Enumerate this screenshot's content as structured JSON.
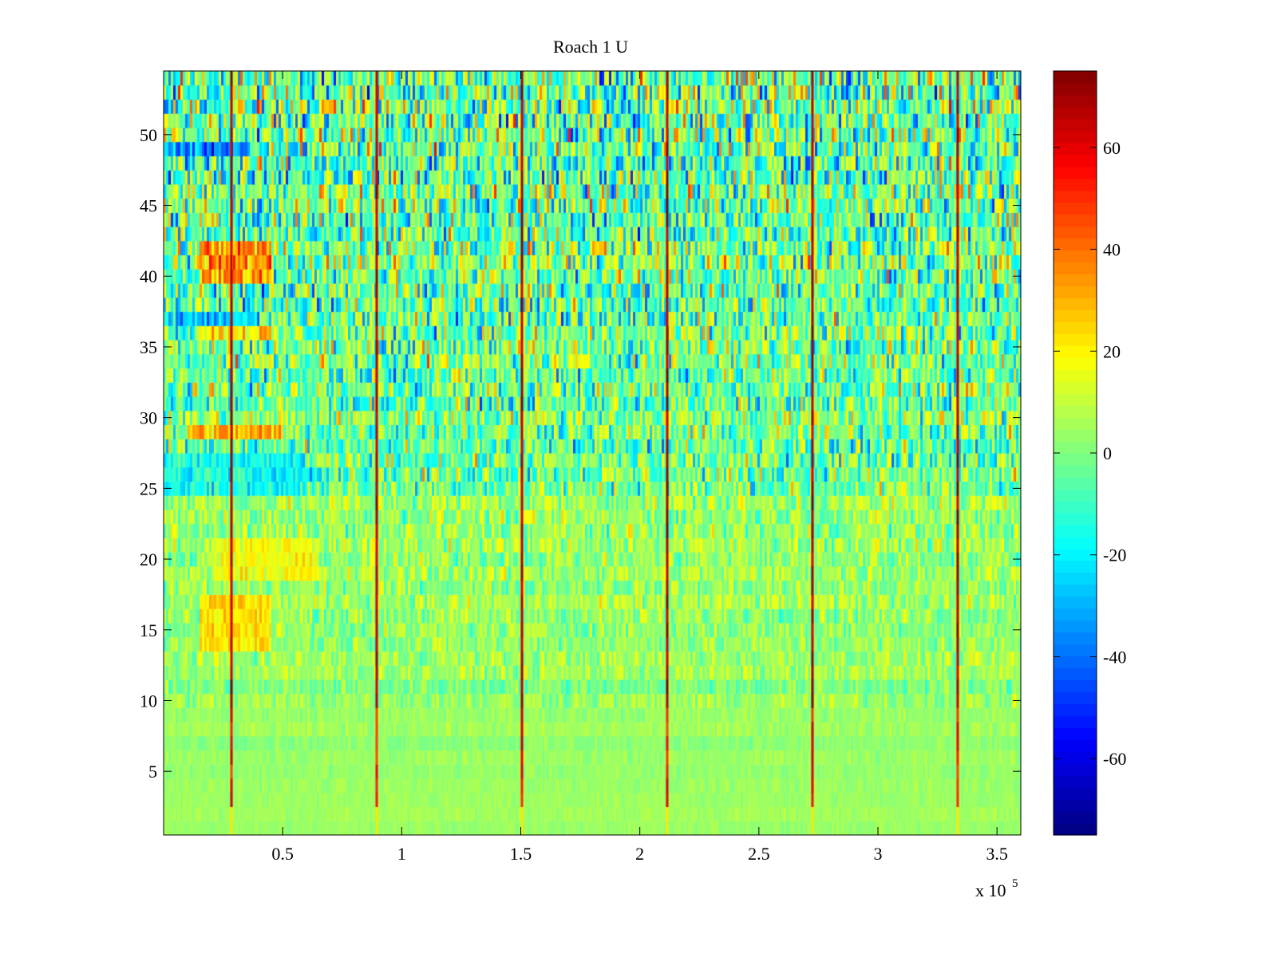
{
  "chart_data": {
    "type": "heatmap",
    "title": "Roach 1 U",
    "xlabel": "",
    "ylabel": "",
    "x_multiplier_label": "x 10",
    "x_multiplier_exponent": "5",
    "x_range": [
      0,
      3.6
    ],
    "x_ticks": [
      0.5,
      1,
      1.5,
      2,
      2.5,
      3,
      3.5
    ],
    "x_tick_labels": [
      "0.5",
      "1",
      "1.5",
      "2",
      "2.5",
      "3",
      "3.5"
    ],
    "y_range": [
      0.5,
      54.5
    ],
    "y_ticks": [
      5,
      10,
      15,
      20,
      25,
      30,
      35,
      40,
      45,
      50
    ],
    "y_tick_labels": [
      "5",
      "10",
      "15",
      "20",
      "25",
      "30",
      "35",
      "40",
      "45",
      "50"
    ],
    "rows": 54,
    "colorbar": {
      "colormap": "jet",
      "range": [
        -75,
        75
      ],
      "ticks": [
        -60,
        -40,
        -20,
        0,
        20,
        40,
        60
      ],
      "tick_labels": [
        "-60",
        "-40",
        "-20",
        "0",
        "20",
        "40",
        "60"
      ]
    },
    "vertical_stripes_x": [
      0.285,
      0.895,
      1.505,
      2.115,
      2.725,
      3.335
    ],
    "hot_regions": [
      {
        "x": [
          0.15,
          0.45
        ],
        "y": [
          40,
          42
        ],
        "value": 40
      },
      {
        "x": [
          0.15,
          0.45
        ],
        "y": [
          36,
          36
        ],
        "value": 30
      },
      {
        "x": [
          0.1,
          0.5
        ],
        "y": [
          29,
          29
        ],
        "value": 35
      },
      {
        "x": [
          0.15,
          0.45
        ],
        "y": [
          14,
          17
        ],
        "value": 25
      },
      {
        "x": [
          0.2,
          0.65
        ],
        "y": [
          19,
          21
        ],
        "value": 18
      }
    ],
    "cold_regions": [
      {
        "x": [
          0.0,
          0.35
        ],
        "y": [
          49,
          49
        ],
        "value": -45
      },
      {
        "x": [
          0.0,
          0.4
        ],
        "y": [
          37,
          37
        ],
        "value": -30
      },
      {
        "x": [
          0.0,
          0.6
        ],
        "y": [
          25,
          27
        ],
        "value": -20
      }
    ],
    "grid": false,
    "legend": "none"
  }
}
